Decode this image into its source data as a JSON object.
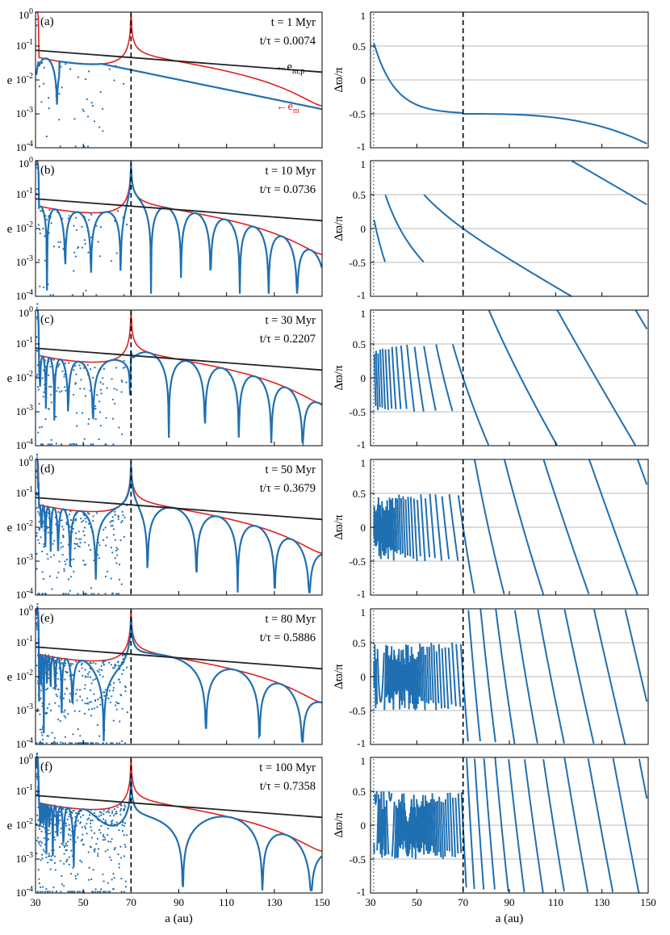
{
  "figure": {
    "colors": {
      "model": "#1f6fb2",
      "envelope": "#e02020",
      "reference": "#222222",
      "grid": "#b8b8b8"
    },
    "xlabel": "a (au)",
    "x_ticks": [
      "30",
      "50",
      "70",
      "90",
      "110",
      "130",
      "150"
    ],
    "left_ylabel": "e",
    "right_ylabel": "Δϖ/π",
    "left_yticks": [
      {
        "base": "10",
        "exp": "0"
      },
      {
        "base": "10",
        "exp": "-1"
      },
      {
        "base": "10",
        "exp": "-2"
      },
      {
        "base": "10",
        "exp": "-3"
      },
      {
        "base": "10",
        "exp": "-4"
      }
    ],
    "right_yticks": [
      "1",
      "0.5",
      "0",
      "-0.5",
      "-1"
    ],
    "curve_labels": {
      "emp_main": "e",
      "emp_sub": "m,p",
      "em_main": "e",
      "em_sub": "m"
    }
  },
  "chart_data": [
    {
      "type": "scatter",
      "panel": "(a)",
      "time": "t = 1 Myr",
      "ratio": "t/τ = 0.0074",
      "t_Myr": 1,
      "t_over_tau": 0.0074,
      "x_range": [
        30,
        150
      ],
      "left_yscale": "log",
      "left_ylim": [
        0.0001,
        1
      ],
      "right_ylim": [
        -1,
        1
      ],
      "resonance_line_a": 70,
      "reference_line_e": [
        [
          30,
          0.075
        ],
        [
          150,
          0.017
        ]
      ]
    },
    {
      "type": "scatter",
      "panel": "(b)",
      "time": "t = 10 Myr",
      "ratio": "t/τ = 0.0736",
      "t_Myr": 10,
      "t_over_tau": 0.0736,
      "x_range": [
        30,
        150
      ],
      "left_yscale": "log",
      "left_ylim": [
        0.0001,
        1
      ],
      "right_ylim": [
        -1,
        1
      ],
      "resonance_line_a": 70,
      "reference_line_e": [
        [
          30,
          0.075
        ],
        [
          150,
          0.017
        ]
      ]
    },
    {
      "type": "scatter",
      "panel": "(c)",
      "time": "t = 30 Myr",
      "ratio": "t/τ = 0.2207",
      "t_Myr": 30,
      "t_over_tau": 0.2207,
      "x_range": [
        30,
        150
      ],
      "left_yscale": "log",
      "left_ylim": [
        0.0001,
        1
      ],
      "right_ylim": [
        -1,
        1
      ],
      "resonance_line_a": 70,
      "reference_line_e": [
        [
          30,
          0.075
        ],
        [
          150,
          0.017
        ]
      ]
    },
    {
      "type": "scatter",
      "panel": "(d)",
      "time": "t = 50 Myr",
      "ratio": "t/τ = 0.3679",
      "t_Myr": 50,
      "t_over_tau": 0.3679,
      "x_range": [
        30,
        150
      ],
      "left_yscale": "log",
      "left_ylim": [
        0.0001,
        1
      ],
      "right_ylim": [
        -1,
        1
      ],
      "resonance_line_a": 70,
      "reference_line_e": [
        [
          30,
          0.075
        ],
        [
          150,
          0.017
        ]
      ]
    },
    {
      "type": "scatter",
      "panel": "(e)",
      "time": "t = 80 Myr",
      "ratio": "t/τ = 0.5886",
      "t_Myr": 80,
      "t_over_tau": 0.5886,
      "x_range": [
        30,
        150
      ],
      "left_yscale": "log",
      "left_ylim": [
        0.0001,
        1
      ],
      "right_ylim": [
        -1,
        1
      ],
      "resonance_line_a": 70,
      "reference_line_e": [
        [
          30,
          0.075
        ],
        [
          150,
          0.017
        ]
      ]
    },
    {
      "type": "scatter",
      "panel": "(f)",
      "time": "t = 100 Myr",
      "ratio": "t/τ = 0.7358",
      "t_Myr": 100,
      "t_over_tau": 0.7358,
      "x_range": [
        30,
        150
      ],
      "left_yscale": "log",
      "left_ylim": [
        0.0001,
        1
      ],
      "right_ylim": [
        -1,
        1
      ],
      "resonance_line_a": 70,
      "reference_line_e": [
        [
          30,
          0.075
        ],
        [
          150,
          0.017
        ]
      ]
    }
  ]
}
